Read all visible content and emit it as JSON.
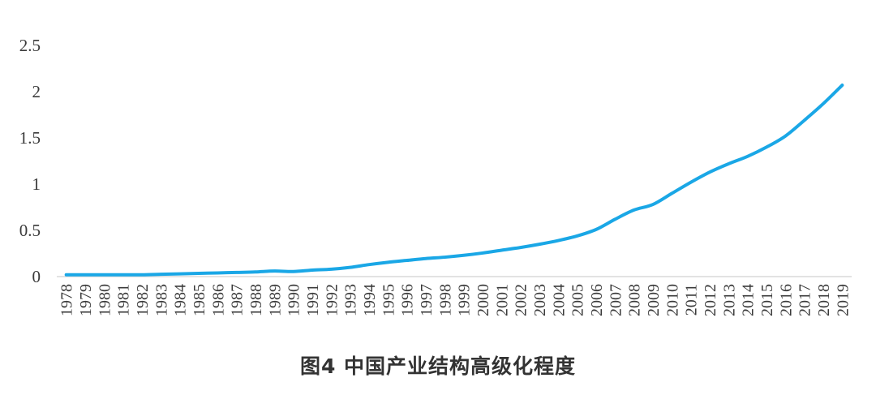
{
  "caption": "图4  中国产业结构高级化程度",
  "chart_data": {
    "type": "line",
    "title": "图4  中国产业结构高级化程度",
    "xlabel": "",
    "ylabel": "",
    "ylim": [
      0,
      2.5
    ],
    "yticks": [
      "0",
      "0.5",
      "1",
      "1.5",
      "2",
      "2.5"
    ],
    "grid": false,
    "legend": "none",
    "line_color": "#1aa7e6",
    "x": [
      "1978",
      "1979",
      "1980",
      "1981",
      "1982",
      "1983",
      "1984",
      "1985",
      "1986",
      "1987",
      "1988",
      "1989",
      "1990",
      "1991",
      "1992",
      "1993",
      "1994",
      "1995",
      "1996",
      "1997",
      "1998",
      "1999",
      "2000",
      "2001",
      "2002",
      "2003",
      "2004",
      "2005",
      "2006",
      "2007",
      "2008",
      "2009",
      "2010",
      "2011",
      "2012",
      "2013",
      "2014",
      "2015",
      "2016",
      "2017",
      "2018",
      "2019"
    ],
    "series": [
      {
        "values": [
          0.02,
          0.02,
          0.02,
          0.02,
          0.02,
          0.025,
          0.03,
          0.035,
          0.04,
          0.045,
          0.05,
          0.06,
          0.055,
          0.07,
          0.08,
          0.1,
          0.13,
          0.155,
          0.175,
          0.195,
          0.21,
          0.23,
          0.255,
          0.285,
          0.315,
          0.35,
          0.39,
          0.44,
          0.51,
          0.62,
          0.72,
          0.78,
          0.9,
          1.02,
          1.13,
          1.22,
          1.3,
          1.4,
          1.52,
          1.69,
          1.87,
          2.07
        ]
      }
    ]
  }
}
